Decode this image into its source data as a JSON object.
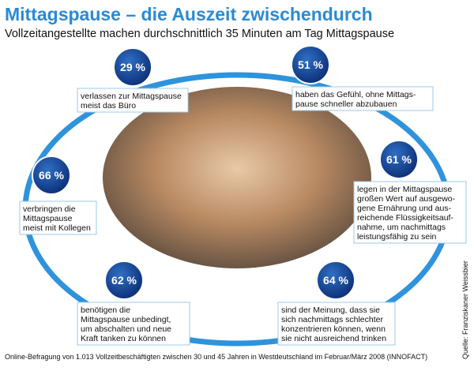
{
  "header": {
    "title": "Mittagspause – die Auszeit zwischendurch",
    "subtitle": "Vollzeitangestellte machen durchschnittlich 35 Minuten am Tag Mittagspause"
  },
  "stats": [
    {
      "value": "29 %",
      "lines": [
        "verlassen zur Mittagspause",
        "meist das Büro"
      ]
    },
    {
      "value": "51 %",
      "lines": [
        "haben das Gefühl, ohne Mittags-",
        "pause schneller abzubauen"
      ]
    },
    {
      "value": "61 %",
      "lines": [
        "legen in der Mittagspause",
        "großen Wert auf ausgewo-",
        "gene Ernährung und aus-",
        "reichende Flüssigkeitsauf-",
        "nahme, um nachmittags",
        "leistungsfähig zu sein"
      ]
    },
    {
      "value": "64 %",
      "lines": [
        "sind der Meinung, dass sie",
        "sich nachmittags schlechter",
        "konzentrieren können, wenn",
        "sie nicht ausreichend trinken"
      ]
    },
    {
      "value": "62 %",
      "lines": [
        "benötigen die",
        "Mittagspause unbedingt,",
        "um abschalten und neue",
        "Kraft tanken zu können"
      ]
    },
    {
      "value": "66 %",
      "lines": [
        "verbringen die",
        "Mittagspause",
        "meist mit Kollegen"
      ]
    }
  ],
  "footnote": "Online-Befragung von 1.013 Vollzeitbeschäftigten zwischen 30 und 45 Jahren in Westdeutschland im Februar/März 2008 (INNOFACT)",
  "source": "Quelle: Franziskaner Weissbier"
}
